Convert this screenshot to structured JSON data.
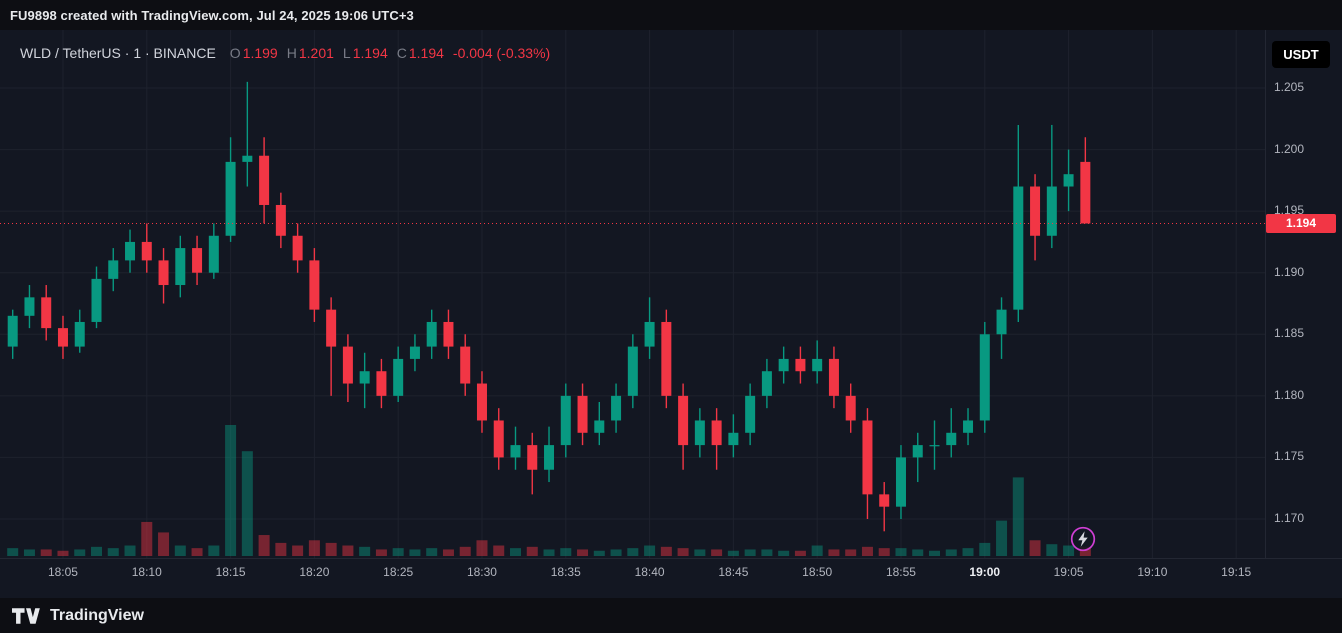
{
  "attribution": "FU9898 created with TradingView.com, Jul 24, 2025 19:06 UTC+3",
  "header": {
    "title": "WLD / TetherUS · 1 · BINANCE",
    "ohlc": {
      "o_label": "O",
      "o": "1.199",
      "h_label": "H",
      "h": "1.201",
      "l_label": "L",
      "l": "1.194",
      "c_label": "C",
      "c": "1.194",
      "change": "-0.004 (-0.33%)"
    }
  },
  "price_axis": {
    "currency_button": "USDT",
    "last_price": "1.194",
    "ticks": [
      "1.205",
      "1.200",
      "1.195",
      "1.190",
      "1.185",
      "1.180",
      "1.175",
      "1.170"
    ]
  },
  "time_axis": {
    "labels": [
      "18:05",
      "18:10",
      "18:15",
      "18:20",
      "18:25",
      "18:30",
      "18:35",
      "18:40",
      "18:45",
      "18:50",
      "18:55",
      "19:00",
      "19:05",
      "19:10",
      "19:15"
    ],
    "emphasized": "19:00"
  },
  "footer": {
    "brand": "TradingView"
  },
  "colors": {
    "background": "#131722",
    "bar_background": "#0d0e13",
    "grid": "#1e222d",
    "text": "#b2b5be",
    "bright_text": "#eceef2",
    "up": "#089981",
    "down": "#f23645",
    "vol_up": "rgba(8,153,129,0.45)",
    "vol_down": "rgba(242,54,69,0.45)",
    "badge": "#f23645",
    "marker": "#cf3fd4"
  },
  "chart_data": {
    "type": "candlestick",
    "title": "WLD / TetherUS · 1 · BINANCE",
    "symbol": "WLD/TetherUS",
    "exchange": "BINANCE",
    "interval": "1 minute",
    "last_price": 1.194,
    "last_change": -0.004,
    "last_change_pct": -0.33,
    "y_range": [
      1.167,
      1.2075
    ],
    "price_grid": [
      1.17,
      1.175,
      1.18,
      1.185,
      1.19,
      1.195,
      1.2,
      1.205
    ],
    "x_grid_labels": [
      "18:05",
      "18:10",
      "18:15",
      "18:20",
      "18:25",
      "18:30",
      "18:35",
      "18:40",
      "18:45",
      "18:50",
      "18:55",
      "19:00",
      "19:05",
      "19:10",
      "19:15"
    ],
    "volume_scale": "relative 0-100",
    "columns": [
      "time",
      "open",
      "high",
      "low",
      "close",
      "volume"
    ],
    "rows": [
      [
        "18:02",
        1.184,
        1.187,
        1.183,
        1.1865,
        6
      ],
      [
        "18:03",
        1.1865,
        1.189,
        1.1855,
        1.188,
        5
      ],
      [
        "18:04",
        1.188,
        1.189,
        1.1845,
        1.1855,
        5
      ],
      [
        "18:05",
        1.1855,
        1.1865,
        1.183,
        1.184,
        4
      ],
      [
        "18:06",
        1.184,
        1.187,
        1.1835,
        1.186,
        5
      ],
      [
        "18:07",
        1.186,
        1.1905,
        1.1855,
        1.1895,
        7
      ],
      [
        "18:08",
        1.1895,
        1.192,
        1.1885,
        1.191,
        6
      ],
      [
        "18:09",
        1.191,
        1.1935,
        1.19,
        1.1925,
        8
      ],
      [
        "18:10",
        1.1925,
        1.194,
        1.19,
        1.191,
        26
      ],
      [
        "18:11",
        1.191,
        1.192,
        1.1875,
        1.189,
        18
      ],
      [
        "18:12",
        1.189,
        1.193,
        1.188,
        1.192,
        8
      ],
      [
        "18:13",
        1.192,
        1.193,
        1.189,
        1.19,
        6
      ],
      [
        "18:14",
        1.19,
        1.194,
        1.1895,
        1.193,
        8
      ],
      [
        "18:15",
        1.193,
        1.201,
        1.1925,
        1.199,
        100
      ],
      [
        "18:16",
        1.199,
        1.2055,
        1.197,
        1.1995,
        80
      ],
      [
        "18:17",
        1.1995,
        1.201,
        1.194,
        1.1955,
        16
      ],
      [
        "18:18",
        1.1955,
        1.1965,
        1.192,
        1.193,
        10
      ],
      [
        "18:19",
        1.193,
        1.194,
        1.19,
        1.191,
        8
      ],
      [
        "18:20",
        1.191,
        1.192,
        1.186,
        1.187,
        12
      ],
      [
        "18:21",
        1.187,
        1.188,
        1.18,
        1.184,
        10
      ],
      [
        "18:22",
        1.184,
        1.185,
        1.1795,
        1.181,
        8
      ],
      [
        "18:23",
        1.181,
        1.1835,
        1.179,
        1.182,
        7
      ],
      [
        "18:24",
        1.182,
        1.183,
        1.179,
        1.18,
        5
      ],
      [
        "18:25",
        1.18,
        1.184,
        1.1795,
        1.183,
        6
      ],
      [
        "18:26",
        1.183,
        1.185,
        1.182,
        1.184,
        5
      ],
      [
        "18:27",
        1.184,
        1.187,
        1.183,
        1.186,
        6
      ],
      [
        "18:28",
        1.186,
        1.187,
        1.183,
        1.184,
        5
      ],
      [
        "18:29",
        1.184,
        1.185,
        1.18,
        1.181,
        7
      ],
      [
        "18:30",
        1.181,
        1.182,
        1.177,
        1.178,
        12
      ],
      [
        "18:31",
        1.178,
        1.179,
        1.174,
        1.175,
        8
      ],
      [
        "18:32",
        1.175,
        1.1775,
        1.174,
        1.176,
        6
      ],
      [
        "18:33",
        1.176,
        1.177,
        1.172,
        1.174,
        7
      ],
      [
        "18:34",
        1.174,
        1.1775,
        1.173,
        1.176,
        5
      ],
      [
        "18:35",
        1.176,
        1.181,
        1.175,
        1.18,
        6
      ],
      [
        "18:36",
        1.18,
        1.181,
        1.176,
        1.177,
        5
      ],
      [
        "18:37",
        1.177,
        1.1795,
        1.176,
        1.178,
        4
      ],
      [
        "18:38",
        1.178,
        1.181,
        1.177,
        1.18,
        5
      ],
      [
        "18:39",
        1.18,
        1.185,
        1.179,
        1.184,
        6
      ],
      [
        "18:40",
        1.184,
        1.188,
        1.183,
        1.186,
        8
      ],
      [
        "18:41",
        1.186,
        1.187,
        1.179,
        1.18,
        7
      ],
      [
        "18:42",
        1.18,
        1.181,
        1.174,
        1.176,
        6
      ],
      [
        "18:43",
        1.176,
        1.179,
        1.175,
        1.178,
        5
      ],
      [
        "18:44",
        1.178,
        1.179,
        1.174,
        1.176,
        5
      ],
      [
        "18:45",
        1.176,
        1.1785,
        1.175,
        1.177,
        4
      ],
      [
        "18:46",
        1.177,
        1.181,
        1.176,
        1.18,
        5
      ],
      [
        "18:47",
        1.18,
        1.183,
        1.179,
        1.182,
        5
      ],
      [
        "18:48",
        1.182,
        1.184,
        1.181,
        1.183,
        4
      ],
      [
        "18:49",
        1.183,
        1.184,
        1.181,
        1.182,
        4
      ],
      [
        "18:50",
        1.182,
        1.1845,
        1.181,
        1.183,
        8
      ],
      [
        "18:51",
        1.183,
        1.184,
        1.179,
        1.18,
        5
      ],
      [
        "18:52",
        1.18,
        1.181,
        1.177,
        1.178,
        5
      ],
      [
        "18:53",
        1.178,
        1.179,
        1.17,
        1.172,
        7
      ],
      [
        "18:54",
        1.172,
        1.173,
        1.169,
        1.171,
        6
      ],
      [
        "18:55",
        1.171,
        1.176,
        1.17,
        1.175,
        6
      ],
      [
        "18:56",
        1.175,
        1.177,
        1.173,
        1.176,
        5
      ],
      [
        "18:57",
        1.176,
        1.178,
        1.174,
        1.176,
        4
      ],
      [
        "18:58",
        1.176,
        1.179,
        1.175,
        1.177,
        5
      ],
      [
        "18:59",
        1.177,
        1.179,
        1.176,
        1.178,
        6
      ],
      [
        "19:00",
        1.178,
        1.186,
        1.177,
        1.185,
        10
      ],
      [
        "19:01",
        1.185,
        1.188,
        1.183,
        1.187,
        27
      ],
      [
        "19:02",
        1.187,
        1.202,
        1.186,
        1.197,
        60
      ],
      [
        "19:03",
        1.197,
        1.198,
        1.191,
        1.193,
        12
      ],
      [
        "19:04",
        1.193,
        1.202,
        1.192,
        1.197,
        9
      ],
      [
        "19:05",
        1.197,
        1.2,
        1.195,
        1.198,
        8
      ],
      [
        "19:06",
        1.199,
        1.201,
        1.194,
        1.194,
        7
      ]
    ]
  }
}
